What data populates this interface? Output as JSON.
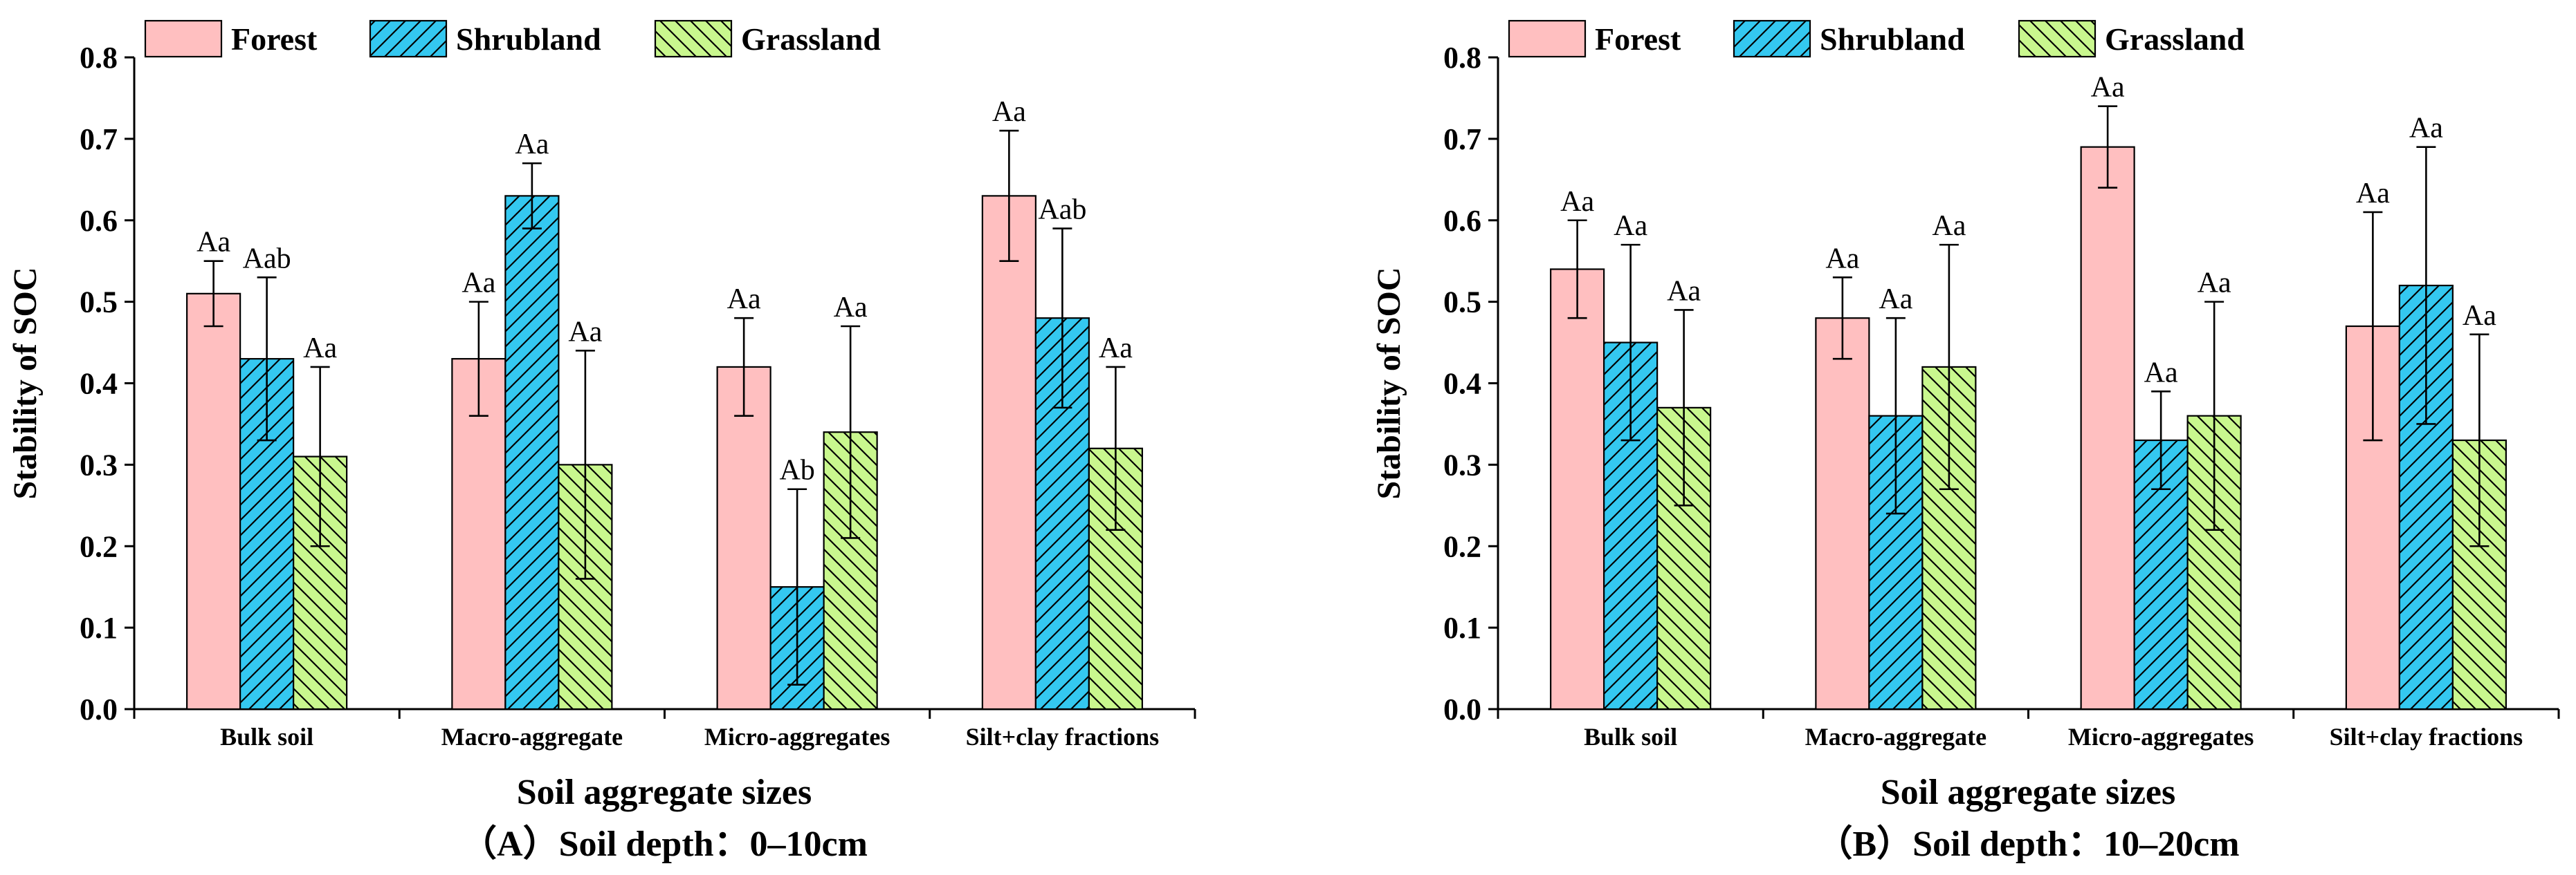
{
  "colors": {
    "forest": "#ffbfc0",
    "shrubland": "#34c8f0",
    "grassland": "#c9f78e",
    "axis": "#000000"
  },
  "chart_data": [
    {
      "type": "bar",
      "caption": "（A）Soil depth：0–10cm",
      "xlabel": "Soil aggregate sizes",
      "ylabel": "Stability of SOC",
      "ylim": [
        0,
        0.8
      ],
      "yticks": [
        "0.0",
        "0.1",
        "0.2",
        "0.3",
        "0.4",
        "0.5",
        "0.6",
        "0.7",
        "0.8"
      ],
      "legend_position": "top-left",
      "categories": [
        "Bulk soil",
        "Macro-aggregate",
        "Micro-aggregates",
        "Silt+clay fractions"
      ],
      "series": [
        {
          "name": "Forest",
          "values": [
            0.51,
            0.43,
            0.42,
            0.63
          ],
          "errors": [
            0.04,
            0.07,
            0.06,
            0.08
          ],
          "labels": [
            "Aa",
            "Aa",
            "Aa",
            "Aa"
          ]
        },
        {
          "name": "Shrubland",
          "values": [
            0.43,
            0.63,
            0.15,
            0.48
          ],
          "errors": [
            0.1,
            0.04,
            0.12,
            0.11
          ],
          "labels": [
            "Aab",
            "Aa",
            "Ab",
            "Aab"
          ]
        },
        {
          "name": "Grassland",
          "values": [
            0.31,
            0.3,
            0.34,
            0.32
          ],
          "errors": [
            0.11,
            0.14,
            0.13,
            0.1
          ],
          "labels": [
            "Aa",
            "Aa",
            "Aa",
            "Aa"
          ]
        }
      ]
    },
    {
      "type": "bar",
      "caption": "（B）Soil depth：10–20cm",
      "xlabel": "Soil aggregate sizes",
      "ylabel": "Stability of SOC",
      "ylim": [
        0,
        0.8
      ],
      "yticks": [
        "0.0",
        "0.1",
        "0.2",
        "0.3",
        "0.4",
        "0.5",
        "0.6",
        "0.7",
        "0.8"
      ],
      "legend_position": "top-left",
      "categories": [
        "Bulk soil",
        "Macro-aggregate",
        "Micro-aggregates",
        "Silt+clay fractions"
      ],
      "series": [
        {
          "name": "Forest",
          "values": [
            0.54,
            0.48,
            0.69,
            0.47
          ],
          "errors": [
            0.06,
            0.05,
            0.05,
            0.14
          ],
          "labels": [
            "Aa",
            "Aa",
            "Aa",
            "Aa"
          ]
        },
        {
          "name": "Shrubland",
          "values": [
            0.45,
            0.36,
            0.33,
            0.52
          ],
          "errors": [
            0.12,
            0.12,
            0.06,
            0.17
          ],
          "labels": [
            "Aa",
            "Aa",
            "Aa",
            "Aa"
          ]
        },
        {
          "name": "Grassland",
          "values": [
            0.37,
            0.42,
            0.36,
            0.33
          ],
          "errors": [
            0.12,
            0.15,
            0.14,
            0.13
          ],
          "labels": [
            "Aa",
            "Aa",
            "Aa",
            "Aa"
          ]
        }
      ]
    }
  ]
}
